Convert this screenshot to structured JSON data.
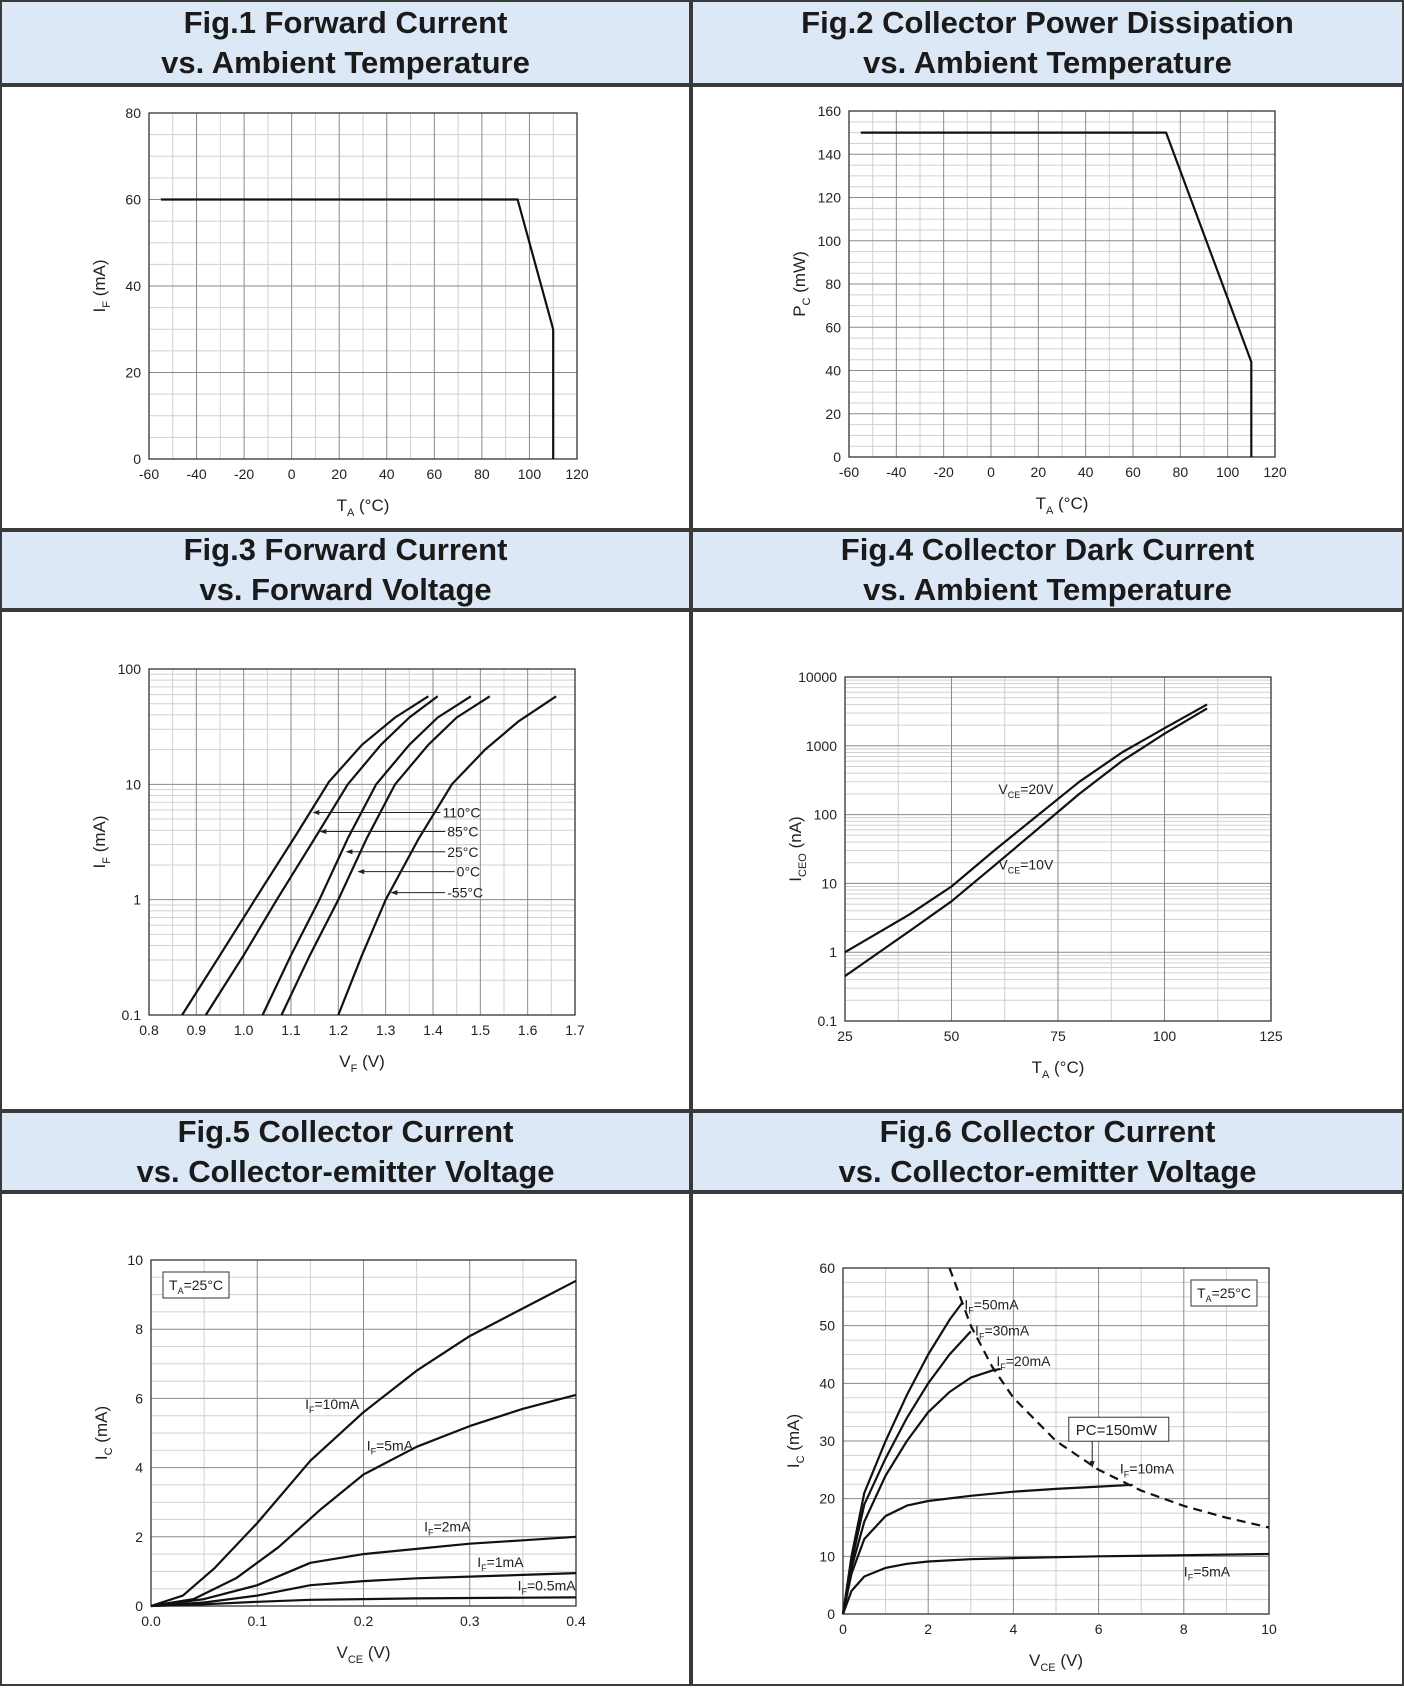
{
  "chart_data": [
    {
      "type": "line",
      "title": [
        "Fig.1 Forward Current",
        "vs. Ambient Temperature"
      ],
      "xlabel": {
        "main": "T",
        "sub": "A",
        "unit": " (°C)"
      },
      "ylabel": {
        "main": "I",
        "sub": "F",
        "unit": " (mA)"
      },
      "xlim": [
        -60,
        120
      ],
      "ylim": [
        0,
        80
      ],
      "xticks": [
        -60,
        -40,
        -20,
        0,
        20,
        40,
        60,
        80,
        100,
        120
      ],
      "xticklabels": [
        "-60",
        "-40",
        "-20",
        "0",
        "20",
        "40",
        "60",
        "80",
        "100",
        "120"
      ],
      "yticks": [
        0,
        20,
        40,
        60,
        80
      ],
      "yticklabels": [
        "0",
        "20",
        "40",
        "60",
        "80"
      ],
      "grid": true,
      "series": [
        {
          "x": [
            -55,
            95,
            110,
            110
          ],
          "y": [
            60,
            60,
            30,
            0
          ]
        }
      ]
    },
    {
      "type": "line",
      "title": [
        "Fig.2 Collector Power Dissipation",
        "vs. Ambient Temperature"
      ],
      "xlabel": {
        "main": "T",
        "sub": "A",
        "unit": " (°C)"
      },
      "ylabel": {
        "main": "P",
        "sub": "C",
        "unit": " (mW)"
      },
      "xlim": [
        -60,
        120
      ],
      "ylim": [
        0,
        160
      ],
      "xticks": [
        -60,
        -40,
        -20,
        0,
        20,
        40,
        60,
        80,
        100,
        120
      ],
      "xticklabels": [
        "-60",
        "-40",
        "-20",
        "0",
        "20",
        "40",
        "60",
        "80",
        "100",
        "120"
      ],
      "yticks": [
        0,
        20,
        40,
        60,
        80,
        100,
        120,
        140,
        160
      ],
      "yticklabels": [
        "0",
        "20",
        "40",
        "60",
        "80",
        "100",
        "120",
        "140",
        "160"
      ],
      "grid": true,
      "series": [
        {
          "x": [
            -55,
            74,
            110,
            110
          ],
          "y": [
            150,
            150,
            44,
            0
          ]
        }
      ]
    },
    {
      "type": "line",
      "title": [
        "Fig.3 Forward Current",
        "vs. Forward Voltage"
      ],
      "xlabel": {
        "main": "V",
        "sub": "F",
        "unit": " (V)"
      },
      "ylabel": {
        "main": "I",
        "sub": "F",
        "unit": " (mA)"
      },
      "xlim": [
        0.8,
        1.7
      ],
      "ylim": [
        0.1,
        100
      ],
      "yscale": "log",
      "xticks": [
        0.8,
        0.9,
        1.0,
        1.1,
        1.2,
        1.3,
        1.4,
        1.5,
        1.6,
        1.7
      ],
      "xticklabels": [
        "0.8",
        "0.9",
        "1.0",
        "1.1",
        "1.2",
        "1.3",
        "1.4",
        "1.5",
        "1.6",
        "1.7"
      ],
      "yticks": [
        0.1,
        1,
        10,
        100
      ],
      "yticklabels": [
        "0.1",
        "1",
        "10",
        "100"
      ],
      "grid": true,
      "series": [
        {
          "x": [
            0.87,
            0.95,
            1.03,
            1.11,
            1.18,
            1.25,
            1.32,
            1.39
          ],
          "y": [
            0.1,
            0.33,
            1.1,
            3.6,
            10.5,
            22,
            38,
            58
          ]
        },
        {
          "x": [
            0.92,
            1.0,
            1.07,
            1.15,
            1.22,
            1.29,
            1.35,
            1.41
          ],
          "y": [
            0.1,
            0.33,
            1.0,
            3.4,
            10,
            22,
            38,
            58
          ]
        },
        {
          "x": [
            1.04,
            1.1,
            1.16,
            1.22,
            1.28,
            1.35,
            1.41,
            1.48
          ],
          "y": [
            0.1,
            0.33,
            1.0,
            3.4,
            10,
            22,
            38,
            58
          ]
        },
        {
          "x": [
            1.08,
            1.14,
            1.2,
            1.26,
            1.32,
            1.39,
            1.45,
            1.52
          ],
          "y": [
            0.1,
            0.33,
            1.0,
            3.4,
            10,
            22,
            38,
            58
          ]
        },
        {
          "x": [
            1.2,
            1.25,
            1.3,
            1.37,
            1.44,
            1.51,
            1.58,
            1.66
          ],
          "y": [
            0.1,
            0.33,
            1.0,
            3.4,
            10,
            20,
            35,
            58
          ]
        }
      ],
      "annotations": [
        {
          "label": "110°C",
          "y": 5.7,
          "x_text": 1.42,
          "x_arrow": 1.145
        },
        {
          "label": "85°C",
          "y": 3.9,
          "x_text": 1.43,
          "x_arrow": 1.16
        },
        {
          "label": "25°C",
          "y": 2.6,
          "x_text": 1.43,
          "x_arrow": 1.215
        },
        {
          "label": "0°C",
          "y": 1.75,
          "x_text": 1.45,
          "x_arrow": 1.24
        },
        {
          "label": "-55°C",
          "y": 1.15,
          "x_text": 1.43,
          "x_arrow": 1.31
        }
      ]
    },
    {
      "type": "line",
      "title": [
        "Fig.4 Collector Dark Current",
        "vs. Ambient Temperature"
      ],
      "xlabel": {
        "main": "T",
        "sub": "A",
        "unit": " (°C)"
      },
      "ylabel": {
        "main": "I",
        "sub": "CEO",
        "unit": " (nA)"
      },
      "xlim": [
        25,
        125
      ],
      "ylim": [
        0.1,
        10000
      ],
      "yscale": "log",
      "xticks": [
        25,
        50,
        75,
        100,
        125
      ],
      "xticklabels": [
        "25",
        "50",
        "75",
        "100",
        "125"
      ],
      "yticks": [
        0.1,
        1,
        10,
        100,
        1000,
        10000
      ],
      "yticklabels": [
        "0.1",
        "1",
        "10",
        "100",
        "1000",
        "10000"
      ],
      "grid": true,
      "series": [
        {
          "x": [
            25,
            40,
            50,
            60,
            70,
            80,
            90,
            100,
            110
          ],
          "y": [
            1.0,
            3.5,
            9,
            30,
            95,
            300,
            800,
            1800,
            4000
          ]
        },
        {
          "x": [
            25,
            40,
            50,
            60,
            70,
            80,
            90,
            100,
            110
          ],
          "y": [
            0.45,
            2.0,
            5.5,
            18,
            60,
            200,
            600,
            1500,
            3500
          ]
        }
      ],
      "annotations": [
        {
          "label": "V",
          "sub": "CE",
          "rest": "=20V",
          "x": 61,
          "y": 200
        },
        {
          "label": "V",
          "sub": "CE",
          "rest": "=10V",
          "x": 61,
          "y": 16
        }
      ]
    },
    {
      "type": "line",
      "title": [
        "Fig.5 Collector Current",
        "vs. Collector-emitter Voltage"
      ],
      "xlabel": {
        "main": "V",
        "sub": "CE",
        "unit": " (V)"
      },
      "ylabel": {
        "main": "I",
        "sub": "C",
        "unit": " (mA)"
      },
      "xlim": [
        0,
        0.4
      ],
      "ylim": [
        0,
        10
      ],
      "xticks": [
        0,
        0.1,
        0.2,
        0.3,
        0.4
      ],
      "xticklabels": [
        "0.0",
        "0.1",
        "0.2",
        "0.3",
        "0.4"
      ],
      "yticks": [
        0,
        2,
        4,
        6,
        8,
        10
      ],
      "yticklabels": [
        "0",
        "2",
        "4",
        "6",
        "8",
        "10"
      ],
      "grid": true,
      "series": [
        {
          "x": [
            0,
            0.03,
            0.06,
            0.1,
            0.15,
            0.2,
            0.25,
            0.3,
            0.35,
            0.4
          ],
          "y": [
            0,
            0.3,
            1.1,
            2.4,
            4.2,
            5.6,
            6.8,
            7.8,
            8.6,
            9.4
          ]
        },
        {
          "x": [
            0,
            0.04,
            0.08,
            0.12,
            0.16,
            0.2,
            0.25,
            0.3,
            0.35,
            0.4
          ],
          "y": [
            0,
            0.2,
            0.8,
            1.7,
            2.8,
            3.8,
            4.6,
            5.2,
            5.7,
            6.1
          ]
        },
        {
          "x": [
            0,
            0.05,
            0.1,
            0.15,
            0.2,
            0.25,
            0.3,
            0.35,
            0.4
          ],
          "y": [
            0,
            0.2,
            0.6,
            1.25,
            1.5,
            1.65,
            1.8,
            1.9,
            2.0
          ]
        },
        {
          "x": [
            0,
            0.05,
            0.1,
            0.15,
            0.2,
            0.25,
            0.3,
            0.35,
            0.4
          ],
          "y": [
            0,
            0.1,
            0.3,
            0.6,
            0.72,
            0.8,
            0.85,
            0.9,
            0.95
          ]
        },
        {
          "x": [
            0,
            0.05,
            0.1,
            0.15,
            0.2,
            0.25,
            0.3,
            0.35,
            0.4
          ],
          "y": [
            0,
            0.05,
            0.12,
            0.18,
            0.2,
            0.22,
            0.23,
            0.24,
            0.25
          ]
        }
      ],
      "legend_box": {
        "label": "T",
        "sub": "A",
        "rest": "=25°C"
      },
      "annotations": [
        {
          "label": "I",
          "sub": "F",
          "rest": "=10mA",
          "x": 0.145,
          "y": 5.7
        },
        {
          "label": "I",
          "sub": "F",
          "rest": "=5mA",
          "x": 0.203,
          "y": 4.5
        },
        {
          "label": "I",
          "sub": "F",
          "rest": "=2mA",
          "x": 0.257,
          "y": 2.15
        },
        {
          "label": "I",
          "sub": "F",
          "rest": "=1mA",
          "x": 0.307,
          "y": 1.13
        },
        {
          "label": "I",
          "sub": "F",
          "rest": "=0.5mA",
          "x": 0.345,
          "y": 0.45
        }
      ]
    },
    {
      "type": "line",
      "title": [
        "Fig.6 Collector Current",
        "vs. Collector-emitter Voltage"
      ],
      "xlabel": {
        "main": "V",
        "sub": "CE",
        "unit": " (V)"
      },
      "ylabel": {
        "main": "I",
        "sub": "C",
        "unit": " (mA)"
      },
      "xlim": [
        0,
        10
      ],
      "ylim": [
        0,
        60
      ],
      "xticks": [
        0,
        2,
        4,
        6,
        8,
        10
      ],
      "xticklabels": [
        "0",
        "2",
        "4",
        "6",
        "8",
        "10"
      ],
      "yticks": [
        0,
        10,
        20,
        30,
        40,
        50,
        60
      ],
      "yticklabels": [
        "0",
        "10",
        "20",
        "30",
        "40",
        "50",
        "60"
      ],
      "grid": true,
      "series": [
        {
          "x": [
            0,
            0.2,
            0.5,
            1.0,
            1.5,
            2.0,
            2.5,
            2.8
          ],
          "y": [
            0,
            10,
            21,
            30,
            38,
            45,
            51,
            54
          ]
        },
        {
          "x": [
            0,
            0.2,
            0.5,
            1.0,
            1.5,
            2.0,
            2.5,
            3.0
          ],
          "y": [
            0,
            9,
            19,
            27,
            34,
            40,
            45,
            49
          ]
        },
        {
          "x": [
            0,
            0.2,
            0.5,
            1.0,
            1.5,
            2.0,
            2.5,
            3.0,
            3.5,
            3.7
          ],
          "y": [
            0,
            8,
            16,
            24,
            30,
            35,
            38.5,
            41,
            42.2,
            42.5
          ]
        },
        {
          "x": [
            0,
            0.2,
            0.5,
            1.0,
            1.5,
            2.0,
            3.0,
            4.0,
            5.0,
            6.0,
            6.8
          ],
          "y": [
            0,
            7,
            13,
            17,
            18.8,
            19.6,
            20.5,
            21.2,
            21.7,
            22.1,
            22.4
          ]
        },
        {
          "x": [
            0,
            0.2,
            0.5,
            1.0,
            1.5,
            2.0,
            3.0,
            4.0,
            6.0,
            8.0,
            10.0
          ],
          "y": [
            0,
            4,
            6.5,
            8,
            8.7,
            9.1,
            9.5,
            9.7,
            10.0,
            10.2,
            10.4
          ]
        },
        {
          "x": [
            2.5,
            3.0,
            3.5,
            4.0,
            5.0,
            6.0,
            7.0,
            8.0,
            9.0,
            10.0
          ],
          "y": [
            60,
            50,
            42.9,
            37.5,
            30,
            25,
            21.4,
            18.75,
            16.7,
            15
          ]
        }
      ],
      "legend_box": {
        "label": "T",
        "sub": "A",
        "rest": "=25°C"
      },
      "annotations": [
        {
          "label": "I",
          "sub": "F",
          "rest": "=50mA",
          "x": 2.85,
          "y": 52.8
        },
        {
          "label": "I",
          "sub": "F",
          "rest": "=30mA",
          "x": 3.1,
          "y": 48.3
        },
        {
          "label": "I",
          "sub": "F",
          "rest": "=20mA",
          "x": 3.6,
          "y": 43
        },
        {
          "label": "I",
          "sub": "F",
          "rest": "=10mA",
          "x": 6.5,
          "y": 24.4
        },
        {
          "label": "I",
          "sub": "F",
          "rest": "=5mA",
          "x": 8.0,
          "y": 6.5
        }
      ],
      "box_label": {
        "text": "PC=150mW",
        "x": 5.3,
        "y": 31
      }
    }
  ],
  "colors": {
    "header_bg": "#dce8f5",
    "border": "#3a3a3a",
    "line": "#111111",
    "grid_major": "#8a8a8a",
    "grid_minor": "#d0d0d0"
  }
}
